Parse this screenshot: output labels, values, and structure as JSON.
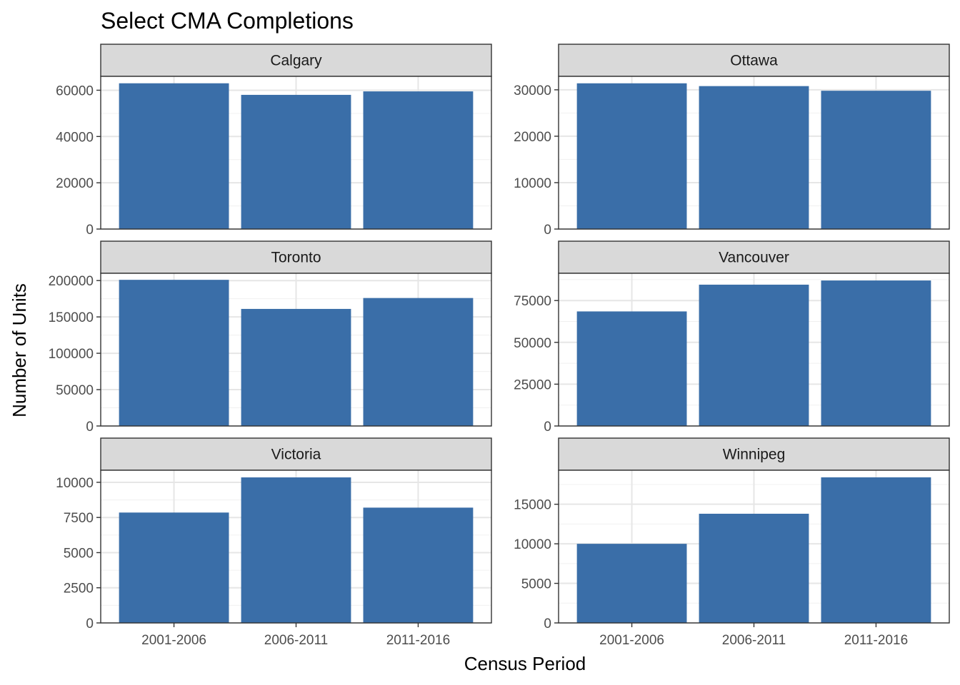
{
  "chart_data": {
    "type": "bar",
    "title": "Select CMA Completions",
    "xlabel": "Census Period",
    "ylabel": "Number of Units",
    "categories": [
      "2001-2006",
      "2006-2011",
      "2011-2016"
    ],
    "bar_color": "#3A6EA8",
    "strip_color": "#D9D9D9",
    "grid": true,
    "facets": [
      {
        "name": "Calgary",
        "values": [
          63000,
          58000,
          59500
        ],
        "ylim": [
          0,
          66000
        ],
        "major_ticks": [
          0,
          20000,
          40000,
          60000
        ],
        "tick_labels": [
          "0",
          "20000",
          "40000",
          "60000"
        ]
      },
      {
        "name": "Ottawa",
        "values": [
          31400,
          30800,
          29800
        ],
        "ylim": [
          0,
          32900
        ],
        "major_ticks": [
          0,
          10000,
          20000,
          30000
        ],
        "tick_labels": [
          "0",
          "10000",
          "20000",
          "30000"
        ]
      },
      {
        "name": "Toronto",
        "values": [
          201000,
          161000,
          176000
        ],
        "ylim": [
          0,
          210000
        ],
        "major_ticks": [
          0,
          50000,
          100000,
          150000,
          200000
        ],
        "tick_labels": [
          "0",
          "50000",
          "100000",
          "150000",
          "200000"
        ]
      },
      {
        "name": "Vancouver",
        "values": [
          68500,
          84500,
          87000
        ],
        "ylim": [
          0,
          91300
        ],
        "major_ticks": [
          0,
          25000,
          50000,
          75000
        ],
        "tick_labels": [
          "0",
          "25000",
          "50000",
          "75000"
        ]
      },
      {
        "name": "Victoria",
        "values": [
          7850,
          10350,
          8200
        ],
        "ylim": [
          0,
          10860
        ],
        "major_ticks": [
          0,
          2500,
          5000,
          7500,
          10000
        ],
        "tick_labels": [
          "0",
          "2500",
          "5000",
          "7500",
          "10000"
        ]
      },
      {
        "name": "Winnipeg",
        "values": [
          10000,
          13800,
          18400
        ],
        "ylim": [
          0,
          19300
        ],
        "major_ticks": [
          0,
          5000,
          10000,
          15000
        ],
        "tick_labels": [
          "0",
          "5000",
          "10000",
          "15000"
        ]
      }
    ]
  }
}
